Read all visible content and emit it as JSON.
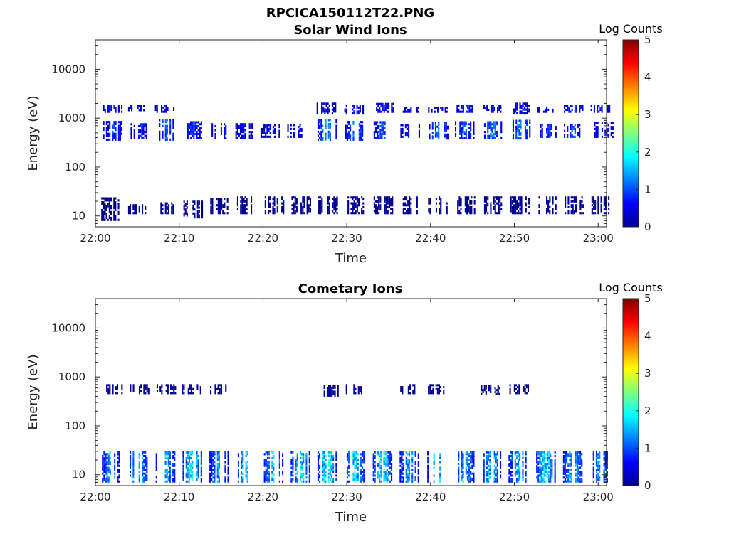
{
  "figure": {
    "title": "RPCICA150112T22.PNG"
  },
  "chart_data": [
    {
      "type": "heatmap",
      "title": "Solar Wind Ions",
      "xlabel": "Time",
      "ylabel": "Energy (eV)",
      "x_tick_labels": [
        "22:00",
        "22:10",
        "22:20",
        "22:30",
        "22:40",
        "22:50",
        "23:00"
      ],
      "y_tick_labels": [
        "10",
        "100",
        "1000",
        "10000"
      ],
      "y_scale": "log",
      "ylim": [
        6,
        40000
      ],
      "xlim_minutes": [
        0,
        61
      ],
      "colorbar": {
        "label": "Log Counts",
        "range": [
          0,
          5
        ],
        "tick_labels": [
          "0",
          "1",
          "2",
          "3",
          "4",
          "5"
        ],
        "colormap": "jet"
      },
      "bursts": [
        {
          "t": 2.0,
          "e_lo": 350,
          "e_hi": 800,
          "level": 0.8
        },
        {
          "t": 5.3,
          "e_lo": 380,
          "e_hi": 750,
          "level": 0.7
        },
        {
          "t": 8.5,
          "e_lo": 350,
          "e_hi": 900,
          "level": 1.0
        },
        {
          "t": 11.5,
          "e_lo": 380,
          "e_hi": 800,
          "level": 0.8
        },
        {
          "t": 14.6,
          "e_lo": 380,
          "e_hi": 750,
          "level": 0.7
        },
        {
          "t": 17.8,
          "e_lo": 380,
          "e_hi": 750,
          "level": 0.6
        },
        {
          "t": 20.8,
          "e_lo": 400,
          "e_hi": 750,
          "level": 0.5
        },
        {
          "t": 24.0,
          "e_lo": 400,
          "e_hi": 750,
          "level": 0.5
        },
        {
          "t": 27.6,
          "e_lo": 350,
          "e_hi": 900,
          "level": 1.3
        },
        {
          "t": 30.9,
          "e_lo": 350,
          "e_hi": 850,
          "level": 1.2
        },
        {
          "t": 34.3,
          "e_lo": 380,
          "e_hi": 800,
          "level": 1.0
        },
        {
          "t": 37.5,
          "e_lo": 400,
          "e_hi": 700,
          "level": 0.7
        },
        {
          "t": 40.9,
          "e_lo": 370,
          "e_hi": 800,
          "level": 1.1
        },
        {
          "t": 44.0,
          "e_lo": 380,
          "e_hi": 800,
          "level": 0.9
        },
        {
          "t": 47.3,
          "e_lo": 380,
          "e_hi": 800,
          "level": 1.1
        },
        {
          "t": 50.7,
          "e_lo": 370,
          "e_hi": 850,
          "level": 1.2
        },
        {
          "t": 53.8,
          "e_lo": 400,
          "e_hi": 750,
          "level": 0.9
        },
        {
          "t": 57.0,
          "e_lo": 400,
          "e_hi": 750,
          "level": 0.9
        },
        {
          "t": 60.6,
          "e_lo": 400,
          "e_hi": 800,
          "level": 0.8
        },
        {
          "t": 2.0,
          "e_lo": 1300,
          "e_hi": 1800,
          "level": 0.6
        },
        {
          "t": 5.0,
          "e_lo": 1400,
          "e_hi": 1700,
          "level": 0.4
        },
        {
          "t": 8.2,
          "e_lo": 1300,
          "e_hi": 1800,
          "level": 0.4
        },
        {
          "t": 27.5,
          "e_lo": 1200,
          "e_hi": 2000,
          "level": 0.4
        },
        {
          "t": 30.8,
          "e_lo": 1200,
          "e_hi": 1800,
          "level": 0.6
        },
        {
          "t": 34.4,
          "e_lo": 1300,
          "e_hi": 2000,
          "level": 0.7
        },
        {
          "t": 37.6,
          "e_lo": 1300,
          "e_hi": 1700,
          "level": 0.4
        },
        {
          "t": 40.8,
          "e_lo": 1300,
          "e_hi": 1700,
          "level": 0.4
        },
        {
          "t": 44.2,
          "e_lo": 1300,
          "e_hi": 1800,
          "level": 0.7
        },
        {
          "t": 47.4,
          "e_lo": 1300,
          "e_hi": 1800,
          "level": 0.5
        },
        {
          "t": 50.6,
          "e_lo": 1200,
          "e_hi": 1900,
          "level": 0.5
        },
        {
          "t": 53.8,
          "e_lo": 1300,
          "e_hi": 1700,
          "level": 0.5
        },
        {
          "t": 57.0,
          "e_lo": 1300,
          "e_hi": 1800,
          "level": 0.8
        },
        {
          "t": 60.2,
          "e_lo": 1300,
          "e_hi": 1800,
          "level": 0.7
        },
        {
          "t": 5.0,
          "e_lo": 11,
          "e_hi": 17,
          "level": 0.1
        },
        {
          "t": 8.5,
          "e_lo": 11,
          "e_hi": 19,
          "level": 0.1
        },
        {
          "t": 11.6,
          "e_lo": 9,
          "e_hi": 20,
          "level": 0.1
        },
        {
          "t": 14.8,
          "e_lo": 11,
          "e_hi": 22,
          "level": 0.1
        },
        {
          "t": 18.0,
          "e_lo": 11,
          "e_hi": 24,
          "level": 0.1
        },
        {
          "t": 21.3,
          "e_lo": 11,
          "e_hi": 24,
          "level": 0.1
        },
        {
          "t": 24.5,
          "e_lo": 11,
          "e_hi": 24,
          "level": 0.1
        },
        {
          "t": 27.7,
          "e_lo": 11,
          "e_hi": 24,
          "level": 0.1
        },
        {
          "t": 31.0,
          "e_lo": 11,
          "e_hi": 24,
          "level": 0.1
        },
        {
          "t": 34.3,
          "e_lo": 11,
          "e_hi": 24,
          "level": 0.1
        },
        {
          "t": 37.6,
          "e_lo": 11,
          "e_hi": 24,
          "level": 0.1
        },
        {
          "t": 40.8,
          "e_lo": 11,
          "e_hi": 24,
          "level": 0.1
        },
        {
          "t": 44.1,
          "e_lo": 11,
          "e_hi": 24,
          "level": 0.1
        },
        {
          "t": 47.3,
          "e_lo": 11,
          "e_hi": 24,
          "level": 0.1
        },
        {
          "t": 50.6,
          "e_lo": 11,
          "e_hi": 24,
          "level": 0.1
        },
        {
          "t": 53.8,
          "e_lo": 11,
          "e_hi": 24,
          "level": 0.1
        },
        {
          "t": 57.1,
          "e_lo": 11,
          "e_hi": 24,
          "level": 0.1
        },
        {
          "t": 60.3,
          "e_lo": 11,
          "e_hi": 24,
          "level": 0.1
        },
        {
          "t": 1.8,
          "e_lo": 8,
          "e_hi": 24,
          "level": 0.1
        }
      ]
    },
    {
      "type": "heatmap",
      "title": "Cometary Ions",
      "xlabel": "Time",
      "ylabel": "Energy (eV)",
      "x_tick_labels": [
        "22:00",
        "22:10",
        "22:20",
        "22:30",
        "22:40",
        "22:50",
        "23:00"
      ],
      "y_tick_labels": [
        "10",
        "100",
        "1000",
        "10000"
      ],
      "y_scale": "log",
      "ylim": [
        6,
        40000
      ],
      "xlim_minutes": [
        0,
        61
      ],
      "colorbar": {
        "label": "Log Counts",
        "range": [
          0,
          5
        ],
        "tick_labels": [
          "0",
          "1",
          "2",
          "3",
          "4",
          "5"
        ],
        "colormap": "jet"
      },
      "bursts": [
        {
          "t": 1.7,
          "e_lo": 7,
          "e_hi": 30,
          "level": 1.3
        },
        {
          "t": 5.0,
          "e_lo": 7,
          "e_hi": 30,
          "level": 1.5
        },
        {
          "t": 8.3,
          "e_lo": 7,
          "e_hi": 30,
          "level": 1.4
        },
        {
          "t": 11.5,
          "e_lo": 7,
          "e_hi": 30,
          "level": 1.7
        },
        {
          "t": 14.7,
          "e_lo": 7,
          "e_hi": 30,
          "level": 1.3
        },
        {
          "t": 17.9,
          "e_lo": 7,
          "e_hi": 30,
          "level": 1.6
        },
        {
          "t": 21.2,
          "e_lo": 7,
          "e_hi": 30,
          "level": 1.5
        },
        {
          "t": 24.4,
          "e_lo": 7,
          "e_hi": 30,
          "level": 1.7
        },
        {
          "t": 27.6,
          "e_lo": 7,
          "e_hi": 30,
          "level": 1.8
        },
        {
          "t": 30.9,
          "e_lo": 7,
          "e_hi": 30,
          "level": 1.6
        },
        {
          "t": 34.2,
          "e_lo": 7,
          "e_hi": 30,
          "level": 1.7
        },
        {
          "t": 37.4,
          "e_lo": 7,
          "e_hi": 30,
          "level": 1.4
        },
        {
          "t": 40.7,
          "e_lo": 7,
          "e_hi": 30,
          "level": 1.7
        },
        {
          "t": 44.0,
          "e_lo": 7,
          "e_hi": 30,
          "level": 1.4
        },
        {
          "t": 47.2,
          "e_lo": 7,
          "e_hi": 30,
          "level": 1.5
        },
        {
          "t": 50.4,
          "e_lo": 7,
          "e_hi": 30,
          "level": 1.4
        },
        {
          "t": 53.7,
          "e_lo": 7,
          "e_hi": 30,
          "level": 1.7
        },
        {
          "t": 56.9,
          "e_lo": 7,
          "e_hi": 30,
          "level": 1.5
        },
        {
          "t": 60.1,
          "e_lo": 7,
          "e_hi": 30,
          "level": 1.3
        },
        {
          "t": 2.2,
          "e_lo": 450,
          "e_hi": 650,
          "level": 0.1
        },
        {
          "t": 5.2,
          "e_lo": 450,
          "e_hi": 700,
          "level": 0.1
        },
        {
          "t": 8.4,
          "e_lo": 450,
          "e_hi": 650,
          "level": 0.1
        },
        {
          "t": 11.4,
          "e_lo": 450,
          "e_hi": 650,
          "level": 0.1
        },
        {
          "t": 14.6,
          "e_lo": 450,
          "e_hi": 650,
          "level": 0.1
        },
        {
          "t": 27.8,
          "e_lo": 400,
          "e_hi": 650,
          "level": 0.1
        },
        {
          "t": 30.8,
          "e_lo": 450,
          "e_hi": 650,
          "level": 0.1
        },
        {
          "t": 37.3,
          "e_lo": 450,
          "e_hi": 650,
          "level": 0.1
        },
        {
          "t": 40.6,
          "e_lo": 450,
          "e_hi": 650,
          "level": 0.1
        },
        {
          "t": 47.1,
          "e_lo": 430,
          "e_hi": 650,
          "level": 0.1
        },
        {
          "t": 50.5,
          "e_lo": 450,
          "e_hi": 650,
          "level": 0.1
        }
      ]
    }
  ]
}
